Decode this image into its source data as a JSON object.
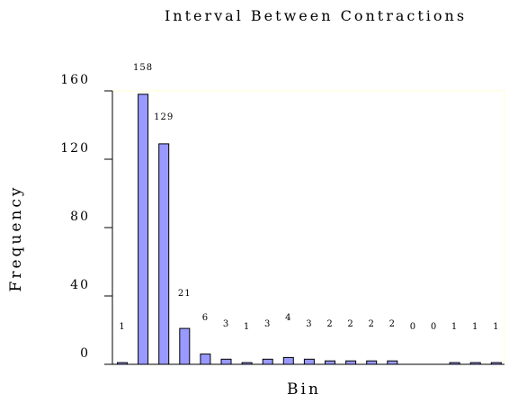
{
  "chart_data": {
    "type": "bar",
    "title": "Interval Between Contractions",
    "xlabel": "Bin",
    "ylabel": "Frequency",
    "ylim": [
      0,
      160
    ],
    "yticks": [
      0,
      40,
      80,
      120,
      160
    ],
    "ytick_labels": [
      "0",
      "40",
      "80",
      "120",
      "160"
    ],
    "values": [
      1,
      158,
      129,
      21,
      6,
      3,
      1,
      3,
      4,
      3,
      2,
      2,
      2,
      2,
      0,
      0,
      1,
      1,
      1
    ],
    "data_labels": [
      "1",
      "158",
      "129",
      "21",
      "6",
      "3",
      "1",
      "3",
      "4",
      "3",
      "2",
      "2",
      "2",
      "2",
      "0",
      "0",
      "1",
      "1",
      "1"
    ],
    "grid": false,
    "legend": "none",
    "colors": {
      "bar_fill": "#9999ff",
      "bar_stroke": "#000000",
      "plot_border": "#ffffcc"
    }
  }
}
